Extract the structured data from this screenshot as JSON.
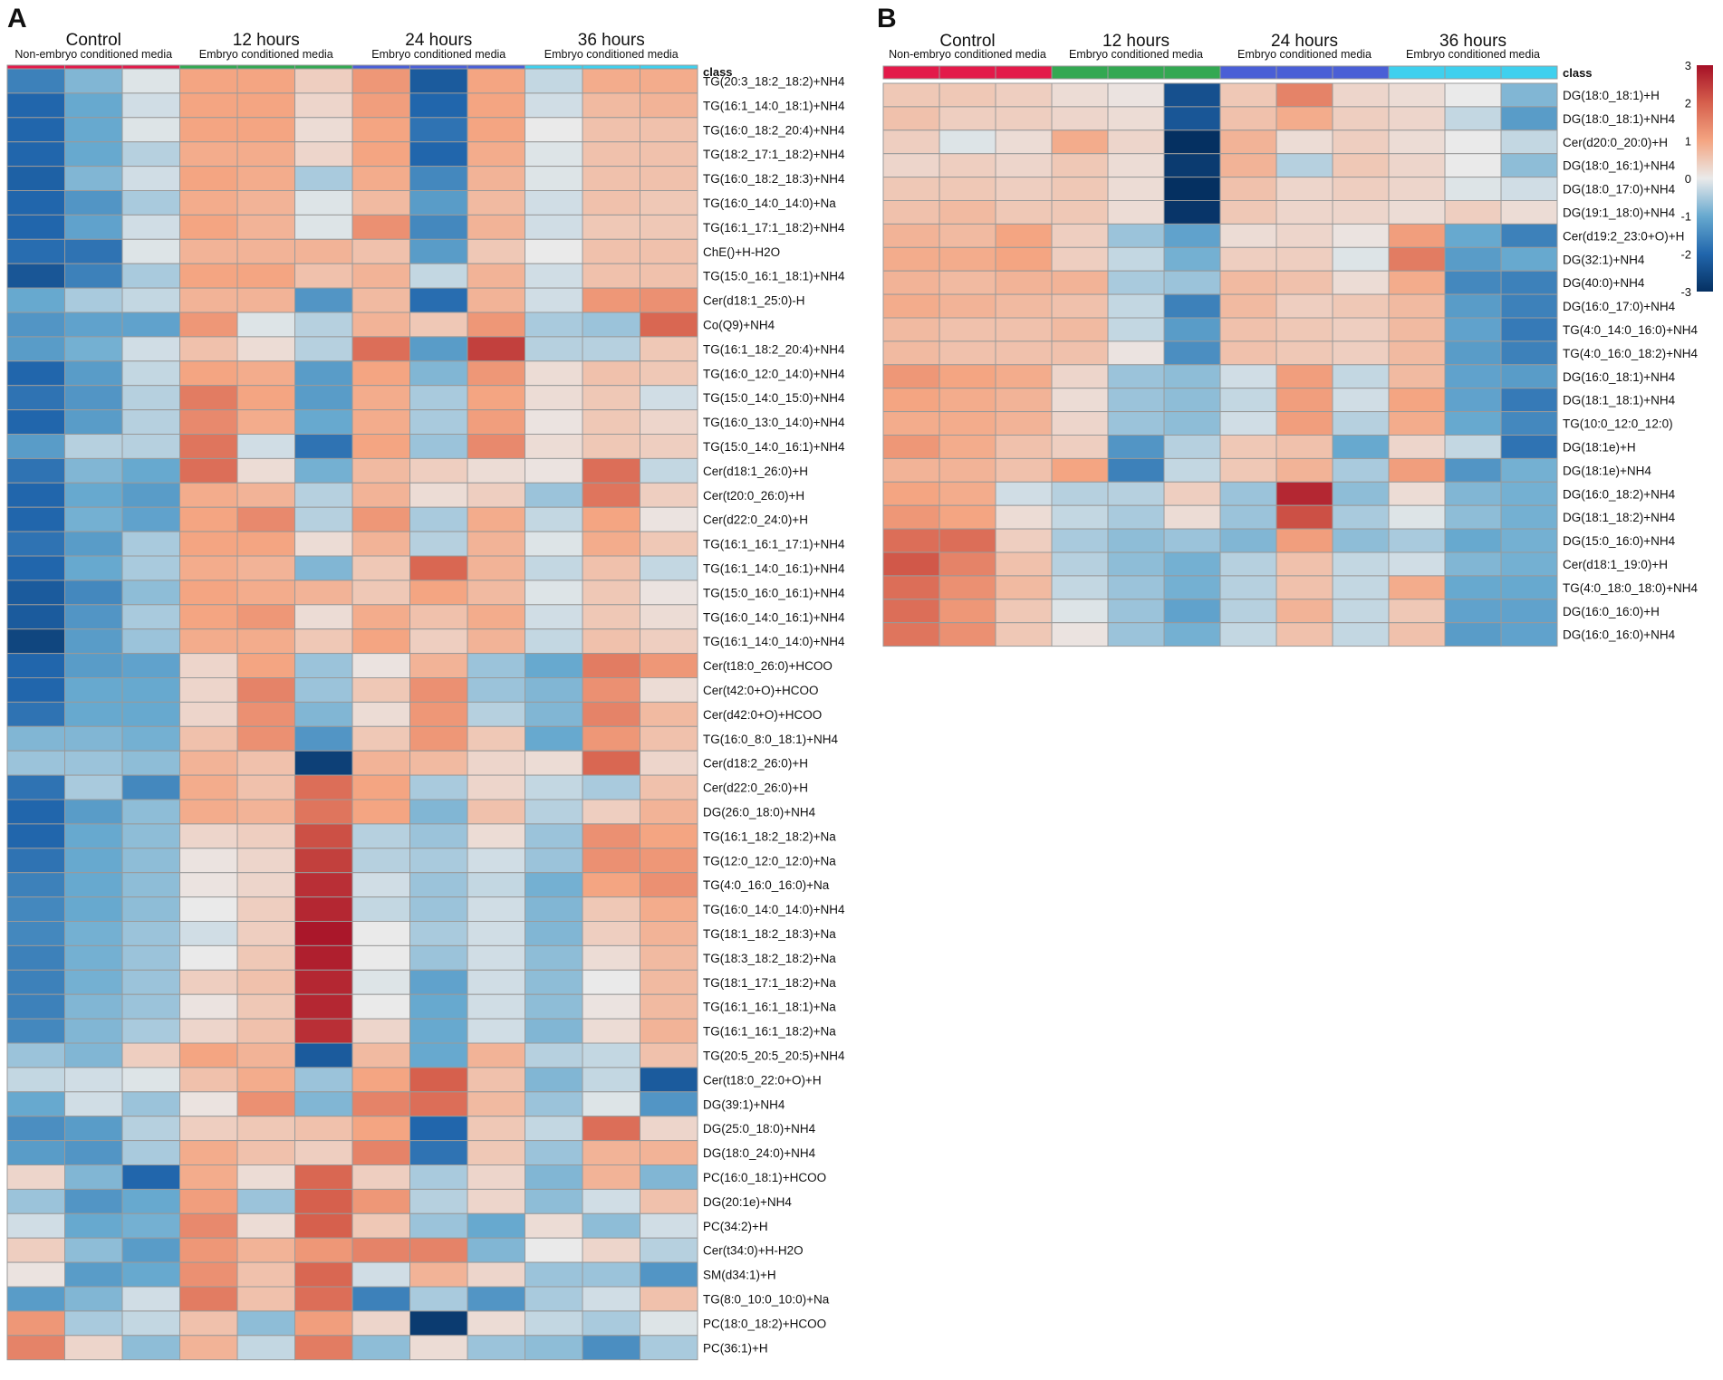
{
  "chart_data": [
    {
      "type": "heatmap",
      "panel_label": "A",
      "groups": [
        {
          "name": "Control",
          "subtitle": "Non-embryo conditioned media",
          "color": "#e31a4a"
        },
        {
          "name": "12 hours",
          "subtitle": "Embryo conditioned media",
          "color": "#33a852"
        },
        {
          "name": "24 hours",
          "subtitle": "Embryo conditioned media",
          "color": "#4a5fd6"
        },
        {
          "name": "36 hours",
          "subtitle": "Embryo conditioned media",
          "color": "#3fd0ee"
        }
      ],
      "class_label": "class",
      "columns_per_group": 3,
      "rows": [
        "TG(20:3_18:2_18:2)+NH4",
        "TG(16:1_14:0_18:1)+NH4",
        "TG(16:0_18:2_20:4)+NH4",
        "TG(18:2_17:1_18:2)+NH4",
        "TG(16:0_18:2_18:3)+NH4",
        "TG(16:0_14:0_14:0)+Na",
        "TG(16:1_17:1_18:2)+NH4",
        "ChE()+H-H2O",
        "TG(15:0_16:1_18:1)+NH4",
        "Cer(d18:1_25:0)-H",
        "Co(Q9)+NH4",
        "TG(16:1_18:2_20:4)+NH4",
        "TG(16:0_12:0_14:0)+NH4",
        "TG(15:0_14:0_15:0)+NH4",
        "TG(16:0_13:0_14:0)+NH4",
        "TG(15:0_14:0_16:1)+NH4",
        "Cer(d18:1_26:0)+H",
        "Cer(t20:0_26:0)+H",
        "Cer(d22:0_24:0)+H",
        "TG(16:1_16:1_17:1)+NH4",
        "TG(16:1_14:0_16:1)+NH4",
        "TG(15:0_16:0_16:1)+NH4",
        "TG(16:0_14:0_16:1)+NH4",
        "TG(16:1_14:0_14:0)+NH4",
        "Cer(t18:0_26:0)+HCOO",
        "Cer(t42:0+O)+HCOO",
        "Cer(d42:0+O)+HCOO",
        "TG(16:0_8:0_18:1)+NH4",
        "Cer(d18:2_26:0)+H",
        "Cer(d22:0_26:0)+H",
        "DG(26:0_18:0)+NH4",
        "TG(16:1_18:2_18:2)+Na",
        "TG(12:0_12:0_12:0)+Na",
        "TG(4:0_16:0_16:0)+Na",
        "TG(16:0_14:0_14:0)+NH4",
        "TG(18:1_18:2_18:3)+Na",
        "TG(18:3_18:2_18:2)+Na",
        "TG(18:1_17:1_18:2)+Na",
        "TG(16:1_16:1_18:1)+Na",
        "TG(16:1_16:1_18:2)+Na",
        "TG(20:5_20:5_20:5)+NH4",
        "Cer(t18:0_22:0+O)+H",
        "DG(39:1)+NH4",
        "DG(25:0_18:0)+NH4",
        "DG(18:0_24:0)+NH4",
        "PC(16:0_18:1)+HCOO",
        "DG(20:1e)+NH4",
        "PC(34:2)+H",
        "Cer(t34:0)+H-H2O",
        "SM(d34:1)+H",
        "TG(8:0_10:0_10:0)+Na",
        "PC(18:0_18:2)+HCOO",
        "PC(36:1)+H"
      ],
      "values": [
        [
          -1.6,
          -0.8,
          -0.1,
          1.0,
          1.0,
          0.4,
          1.2,
          -2.2,
          1.0,
          -0.3,
          0.9,
          0.9
        ],
        [
          -2.0,
          -1.0,
          -0.2,
          1.0,
          1.0,
          0.3,
          1.1,
          -2.0,
          1.0,
          -0.2,
          0.7,
          0.8
        ],
        [
          -2.0,
          -1.0,
          -0.1,
          1.0,
          1.0,
          0.2,
          1.0,
          -1.8,
          1.0,
          0.0,
          0.6,
          0.6
        ],
        [
          -2.0,
          -1.0,
          -0.4,
          0.9,
          0.9,
          0.3,
          1.0,
          -2.0,
          0.9,
          -0.1,
          0.6,
          0.6
        ],
        [
          -2.1,
          -0.8,
          -0.2,
          1.0,
          0.9,
          -0.5,
          0.9,
          -1.5,
          0.8,
          -0.1,
          0.6,
          0.6
        ],
        [
          -2.0,
          -1.3,
          -0.5,
          0.9,
          0.8,
          -0.1,
          0.7,
          -1.2,
          0.7,
          -0.2,
          0.6,
          0.5
        ],
        [
          -2.0,
          -1.1,
          -0.2,
          1.0,
          0.8,
          -0.1,
          1.3,
          -1.5,
          0.8,
          -0.2,
          0.5,
          0.5
        ],
        [
          -1.9,
          -1.8,
          -0.1,
          0.8,
          0.8,
          0.8,
          0.6,
          -1.2,
          0.5,
          0.0,
          0.6,
          0.6
        ],
        [
          -2.3,
          -1.6,
          -0.5,
          1.0,
          1.0,
          0.6,
          0.8,
          -0.3,
          0.8,
          -0.2,
          0.6,
          0.6
        ],
        [
          -1.0,
          -0.5,
          -0.3,
          0.8,
          0.8,
          -1.3,
          0.7,
          -1.9,
          0.8,
          -0.2,
          1.2,
          1.3
        ],
        [
          -1.3,
          -1.1,
          -1.1,
          1.2,
          -0.1,
          -0.4,
          0.8,
          0.5,
          1.2,
          -0.5,
          -0.6,
          1.9
        ],
        [
          -1.2,
          -0.9,
          -0.2,
          0.6,
          0.2,
          -0.4,
          1.8,
          -1.2,
          2.4,
          -0.4,
          -0.4,
          0.5
        ],
        [
          -2.0,
          -1.2,
          -0.3,
          1.0,
          0.9,
          -1.2,
          1.0,
          -0.8,
          1.2,
          0.2,
          0.6,
          0.5
        ],
        [
          -1.8,
          -1.3,
          -0.4,
          1.6,
          1.0,
          -1.2,
          0.9,
          -0.5,
          1.0,
          0.2,
          0.5,
          -0.2
        ],
        [
          -2.0,
          -1.2,
          -0.4,
          1.4,
          0.9,
          -1.0,
          0.9,
          -0.5,
          1.1,
          0.1,
          0.5,
          0.3
        ],
        [
          -1.2,
          -0.4,
          -0.4,
          1.7,
          -0.2,
          -1.8,
          1.0,
          -0.6,
          1.4,
          0.2,
          0.5,
          0.4
        ],
        [
          -1.8,
          -0.8,
          -1.0,
          1.8,
          0.2,
          -0.9,
          0.7,
          0.4,
          0.2,
          0.1,
          1.8,
          -0.3
        ],
        [
          -2.0,
          -1.0,
          -1.2,
          0.9,
          0.8,
          -0.4,
          0.8,
          0.2,
          0.4,
          -0.6,
          1.7,
          0.4
        ],
        [
          -2.0,
          -0.9,
          -1.1,
          1.0,
          1.4,
          -0.4,
          1.2,
          -0.5,
          0.9,
          -0.3,
          1.0,
          0.1
        ],
        [
          -1.8,
          -1.2,
          -0.5,
          1.0,
          1.0,
          0.2,
          0.8,
          -0.4,
          0.8,
          -0.1,
          0.9,
          0.5
        ],
        [
          -2.0,
          -1.0,
          -0.5,
          0.9,
          0.8,
          -0.8,
          0.5,
          1.9,
          0.8,
          -0.3,
          0.6,
          -0.3
        ],
        [
          -2.2,
          -1.5,
          -0.7,
          1.0,
          0.9,
          0.8,
          0.5,
          1.0,
          0.7,
          -0.1,
          0.5,
          0.1
        ],
        [
          -2.2,
          -1.3,
          -0.5,
          1.0,
          1.2,
          0.2,
          0.9,
          0.6,
          0.9,
          -0.2,
          0.5,
          0.2
        ],
        [
          -2.6,
          -1.2,
          -0.6,
          0.9,
          0.9,
          0.5,
          1.0,
          0.4,
          0.8,
          -0.3,
          0.6,
          0.4
        ],
        [
          -2.0,
          -1.2,
          -1.1,
          0.3,
          1.0,
          -0.6,
          0.1,
          0.8,
          -0.6,
          -1.0,
          1.6,
          1.2
        ],
        [
          -2.0,
          -1.0,
          -1.0,
          0.3,
          1.5,
          -0.6,
          0.5,
          1.3,
          -0.6,
          -0.8,
          1.3,
          0.2
        ],
        [
          -1.8,
          -1.0,
          -1.0,
          0.3,
          1.3,
          -0.8,
          0.2,
          1.2,
          -0.4,
          -0.8,
          1.5,
          0.7
        ],
        [
          -0.8,
          -0.8,
          -0.9,
          0.6,
          1.3,
          -1.3,
          0.5,
          1.2,
          0.5,
          -1.0,
          1.2,
          0.6
        ],
        [
          -0.6,
          -0.6,
          -0.7,
          0.8,
          0.6,
          -2.7,
          0.8,
          0.7,
          0.3,
          0.2,
          1.9,
          0.3
        ],
        [
          -1.8,
          -0.5,
          -1.5,
          0.9,
          0.6,
          1.8,
          1.0,
          -0.5,
          0.3,
          -0.3,
          -0.5,
          0.6
        ],
        [
          -2.0,
          -1.2,
          -0.7,
          0.9,
          0.8,
          1.7,
          1.0,
          -0.8,
          0.6,
          -0.4,
          0.4,
          0.8
        ],
        [
          -2.0,
          -1.0,
          -0.7,
          0.3,
          0.4,
          2.2,
          -0.4,
          -0.6,
          0.2,
          -0.6,
          1.3,
          1.0
        ],
        [
          -1.8,
          -1.0,
          -0.7,
          0.1,
          0.3,
          2.4,
          -0.4,
          -0.5,
          -0.2,
          -0.6,
          1.3,
          1.2
        ],
        [
          -1.6,
          -1.0,
          -0.7,
          0.1,
          0.3,
          2.6,
          -0.2,
          -0.6,
          -0.3,
          -0.9,
          1.0,
          1.3
        ],
        [
          -1.5,
          -1.0,
          -0.7,
          0.0,
          0.4,
          2.7,
          -0.3,
          -0.6,
          -0.2,
          -0.8,
          0.5,
          0.9
        ],
        [
          -1.5,
          -0.9,
          -0.6,
          -0.2,
          0.4,
          2.9,
          0.0,
          -0.5,
          -0.2,
          -0.8,
          0.4,
          0.8
        ],
        [
          -1.6,
          -0.9,
          -0.6,
          0.0,
          0.5,
          2.8,
          0.0,
          -0.6,
          -0.2,
          -0.7,
          0.2,
          0.7
        ],
        [
          -1.6,
          -0.9,
          -0.6,
          0.4,
          0.6,
          2.7,
          -0.1,
          -1.1,
          -0.2,
          -0.7,
          0.0,
          0.7
        ],
        [
          -1.6,
          -0.8,
          -0.6,
          0.1,
          0.5,
          2.7,
          0.0,
          -1.0,
          -0.2,
          -0.7,
          0.1,
          0.7
        ],
        [
          -1.5,
          -0.8,
          -0.5,
          0.3,
          0.6,
          2.6,
          0.3,
          -1.0,
          -0.2,
          -0.8,
          0.2,
          0.8
        ],
        [
          -0.6,
          -0.8,
          0.4,
          1.0,
          0.8,
          -2.2,
          0.7,
          -1.0,
          0.8,
          -0.4,
          -0.3,
          0.6
        ],
        [
          -0.3,
          -0.2,
          -0.1,
          0.6,
          0.9,
          -0.6,
          1.0,
          2.0,
          0.6,
          -0.8,
          -0.3,
          -2.2
        ],
        [
          -1.0,
          -0.2,
          -0.6,
          0.1,
          1.3,
          -0.8,
          1.5,
          1.8,
          0.7,
          -0.6,
          -0.1,
          -1.3
        ],
        [
          -1.4,
          -1.2,
          -0.4,
          0.4,
          0.5,
          0.6,
          1.0,
          -2.0,
          0.5,
          -0.3,
          1.8,
          0.3
        ],
        [
          -1.2,
          -1.3,
          -0.5,
          0.9,
          0.6,
          0.4,
          1.5,
          -1.8,
          0.5,
          -0.6,
          0.8,
          0.8
        ],
        [
          0.3,
          -0.8,
          -2.0,
          0.9,
          0.2,
          1.9,
          0.4,
          -0.5,
          0.3,
          -0.8,
          0.8,
          -0.8
        ],
        [
          -0.6,
          -1.3,
          -1.0,
          1.1,
          -0.6,
          2.0,
          1.2,
          -0.4,
          0.3,
          -0.7,
          -0.2,
          0.6
        ],
        [
          -0.2,
          -1.0,
          -0.9,
          1.4,
          0.2,
          2.0,
          0.5,
          -0.6,
          -1.0,
          0.2,
          -0.7,
          -0.2
        ],
        [
          0.4,
          -0.7,
          -1.2,
          1.2,
          0.8,
          1.2,
          1.5,
          1.5,
          -0.8,
          0.0,
          0.3,
          -0.4
        ],
        [
          0.1,
          -1.2,
          -1.0,
          1.3,
          0.6,
          1.9,
          -0.2,
          0.8,
          0.3,
          -0.6,
          -0.6,
          -1.3
        ],
        [
          -1.2,
          -0.8,
          -0.2,
          1.6,
          0.6,
          1.8,
          -1.6,
          -0.5,
          -1.3,
          -0.5,
          -0.2,
          0.6
        ],
        [
          1.2,
          -0.5,
          -0.3,
          0.6,
          -0.7,
          1.1,
          0.3,
          -2.8,
          0.2,
          -0.3,
          -0.5,
          -0.1
        ],
        [
          1.5,
          0.3,
          -0.7,
          0.8,
          -0.3,
          1.6,
          -0.7,
          0.2,
          -0.6,
          -0.7,
          -1.4,
          -0.5
        ]
      ]
    },
    {
      "type": "heatmap",
      "panel_label": "B",
      "groups": [
        {
          "name": "Control",
          "subtitle": "Non-embryo conditioned media",
          "color": "#e31a4a"
        },
        {
          "name": "12 hours",
          "subtitle": "Embryo conditioned media",
          "color": "#33a852"
        },
        {
          "name": "24 hours",
          "subtitle": "Embryo conditioned media",
          "color": "#4a5fd6"
        },
        {
          "name": "36 hours",
          "subtitle": "Embryo conditioned media",
          "color": "#3fd0ee"
        }
      ],
      "class_label": "class",
      "columns_per_group": 3,
      "rows": [
        "DG(18:0_18:1)+H",
        "DG(18:0_18:1)+NH4",
        "Cer(d20:0_20:0)+H",
        "DG(18:0_16:1)+NH4",
        "DG(18:0_17:0)+NH4",
        "DG(19:1_18:0)+NH4",
        "Cer(d19:2_23:0+O)+H",
        "DG(32:1)+NH4",
        "DG(40:0)+NH4",
        "DG(16:0_17:0)+NH4",
        "TG(4:0_14:0_16:0)+NH4",
        "TG(4:0_16:0_18:2)+NH4",
        "DG(16:0_18:1)+NH4",
        "DG(18:1_18:1)+NH4",
        "TG(10:0_12:0_12:0)",
        "DG(18:1e)+H",
        "DG(18:1e)+NH4",
        "DG(16:0_18:2)+NH4",
        "DG(18:1_18:2)+NH4",
        "DG(15:0_16:0)+NH4",
        "Cer(d18:1_19:0)+H",
        "TG(4:0_18:0_18:0)+NH4",
        "DG(16:0_16:0)+H",
        "DG(16:0_16:0)+NH4"
      ],
      "values": [
        [
          0.5,
          0.5,
          0.4,
          0.2,
          0.1,
          -2.4,
          0.5,
          1.5,
          0.3,
          0.2,
          0.0,
          -0.8
        ],
        [
          0.6,
          0.4,
          0.4,
          0.3,
          0.2,
          -2.3,
          0.6,
          0.9,
          0.4,
          0.3,
          -0.3,
          -1.2
        ],
        [
          0.4,
          -0.1,
          0.2,
          0.9,
          0.3,
          -3.1,
          0.8,
          0.2,
          0.4,
          0.2,
          0.0,
          -0.3
        ],
        [
          0.3,
          0.4,
          0.3,
          0.5,
          0.2,
          -2.8,
          0.8,
          -0.4,
          0.5,
          0.3,
          0.0,
          -0.7
        ],
        [
          0.5,
          0.5,
          0.4,
          0.5,
          0.2,
          -3.0,
          0.6,
          0.3,
          0.4,
          0.3,
          -0.1,
          -0.2
        ],
        [
          0.6,
          0.7,
          0.5,
          0.5,
          0.2,
          -2.9,
          0.5,
          0.3,
          0.3,
          0.2,
          0.4,
          0.2
        ],
        [
          0.8,
          0.7,
          1.0,
          0.4,
          -0.6,
          -1.1,
          0.2,
          0.3,
          0.1,
          1.1,
          -1.0,
          -1.6
        ],
        [
          0.9,
          0.9,
          1.0,
          0.4,
          -0.3,
          -0.9,
          0.4,
          0.4,
          -0.1,
          1.6,
          -1.2,
          -1.0
        ],
        [
          0.8,
          0.7,
          0.8,
          0.8,
          -0.5,
          -0.6,
          0.7,
          0.6,
          0.2,
          0.9,
          -1.5,
          -1.6
        ],
        [
          0.9,
          0.8,
          0.7,
          0.6,
          -0.3,
          -1.6,
          0.7,
          0.4,
          0.5,
          0.7,
          -1.2,
          -1.6
        ],
        [
          0.7,
          0.6,
          0.6,
          0.7,
          -0.3,
          -1.2,
          0.6,
          0.5,
          0.4,
          0.7,
          -1.1,
          -1.7
        ],
        [
          0.7,
          0.6,
          0.6,
          0.6,
          0.1,
          -1.4,
          0.6,
          0.5,
          0.4,
          0.7,
          -1.2,
          -1.6
        ],
        [
          1.2,
          1.0,
          0.9,
          0.3,
          -0.6,
          -0.7,
          -0.2,
          1.1,
          -0.3,
          0.7,
          -1.1,
          -1.2
        ],
        [
          1.0,
          0.9,
          0.8,
          0.2,
          -0.6,
          -0.7,
          -0.3,
          1.1,
          -0.2,
          1.0,
          -1.1,
          -1.7
        ],
        [
          0.9,
          0.9,
          0.8,
          0.3,
          -0.6,
          -0.7,
          -0.2,
          1.1,
          -0.4,
          0.9,
          -1.0,
          -1.5
        ],
        [
          1.2,
          0.9,
          0.6,
          0.4,
          -1.3,
          -0.4,
          0.5,
          0.6,
          -1.0,
          0.3,
          -0.3,
          -1.8
        ],
        [
          0.8,
          0.8,
          0.6,
          1.0,
          -1.6,
          -0.3,
          0.5,
          0.8,
          -0.5,
          1.1,
          -1.3,
          -0.9
        ],
        [
          1.0,
          0.9,
          -0.2,
          -0.4,
          -0.4,
          0.4,
          -0.6,
          2.7,
          -0.7,
          0.2,
          -0.8,
          -0.9
        ],
        [
          1.2,
          1.0,
          0.2,
          -0.3,
          -0.5,
          0.2,
          -0.6,
          2.2,
          -0.5,
          -0.1,
          -0.7,
          -0.9
        ],
        [
          1.8,
          1.8,
          0.4,
          -0.5,
          -0.7,
          -0.6,
          -0.8,
          1.1,
          -0.7,
          -0.5,
          -1.0,
          -0.9
        ],
        [
          2.1,
          1.5,
          0.6,
          -0.4,
          -0.7,
          -0.9,
          -0.4,
          0.6,
          -0.3,
          -0.2,
          -0.8,
          -0.9
        ],
        [
          1.8,
          1.3,
          0.7,
          -0.3,
          -0.6,
          -0.9,
          -0.4,
          0.6,
          -0.3,
          0.9,
          -1.0,
          -1.0
        ],
        [
          1.8,
          1.2,
          0.5,
          -0.1,
          -0.6,
          -1.1,
          -0.4,
          0.8,
          -0.3,
          0.5,
          -1.1,
          -1.1
        ],
        [
          1.7,
          1.3,
          0.5,
          0.1,
          -0.6,
          -0.9,
          -0.3,
          0.6,
          -0.3,
          0.6,
          -1.2,
          -1.1
        ]
      ],
      "colorbar": {
        "min": -3,
        "max": 3,
        "ticks": [
          "3",
          "2",
          "1",
          "0",
          "-1",
          "-2",
          "-3"
        ]
      }
    }
  ]
}
